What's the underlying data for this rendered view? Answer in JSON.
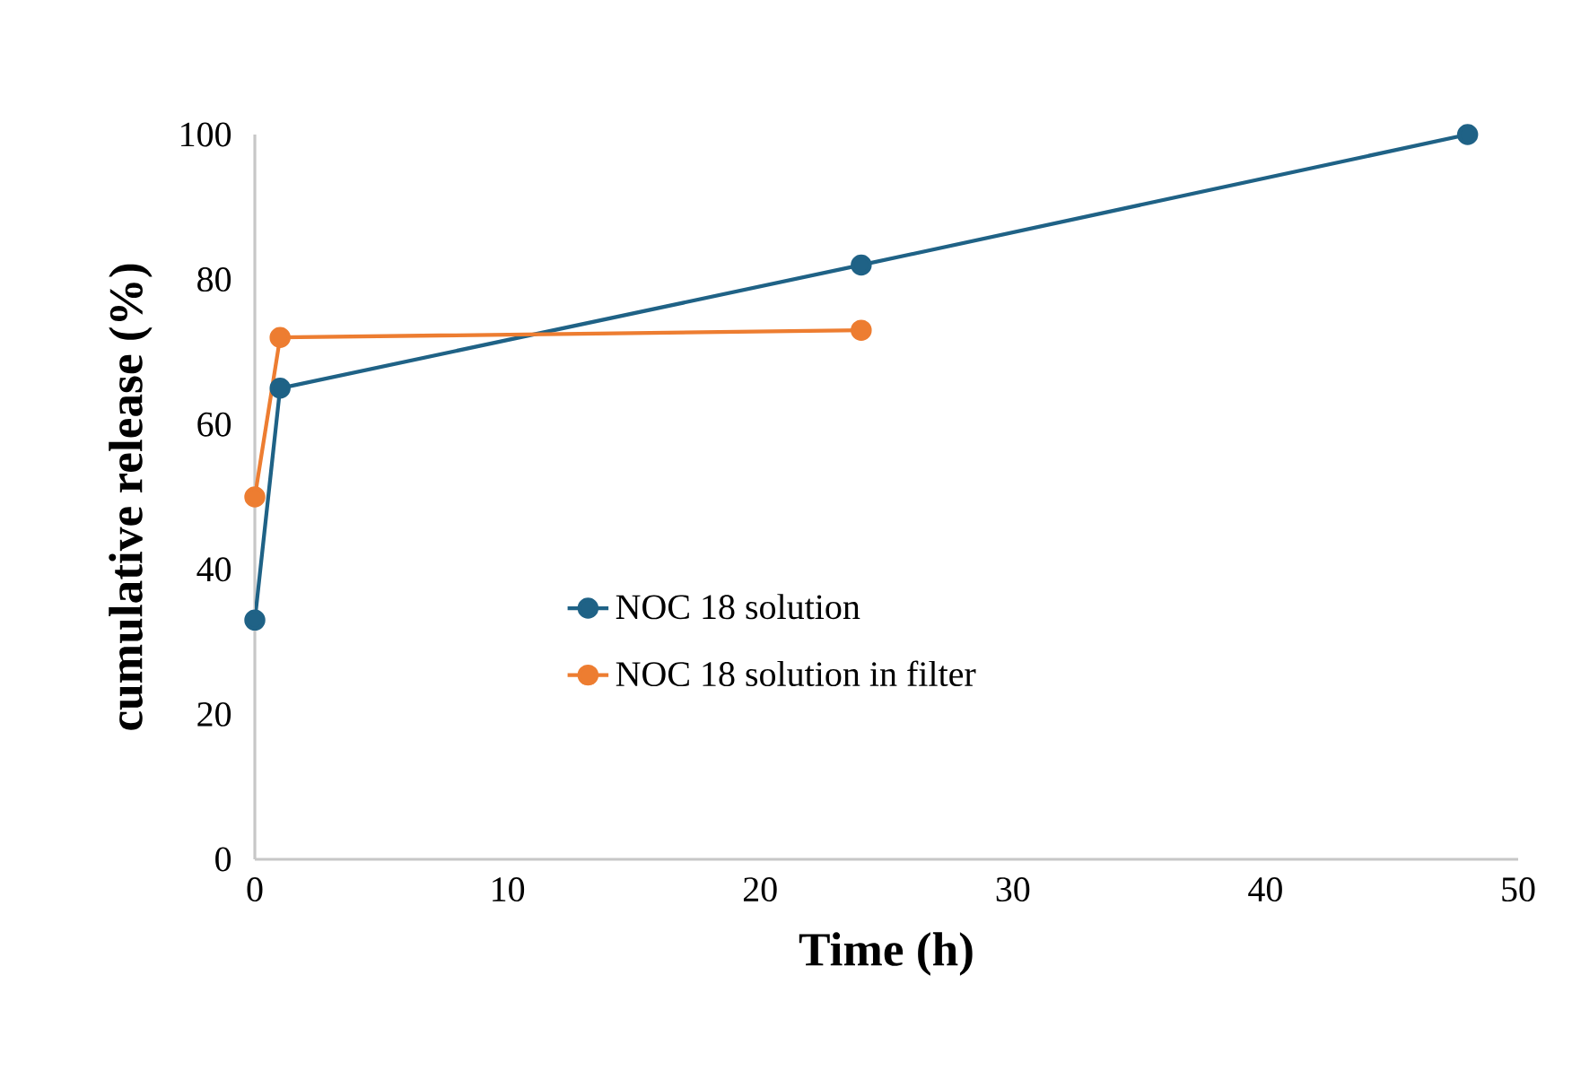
{
  "chart_data": {
    "type": "line",
    "xlabel": "Time (h)",
    "ylabel": "cumulative  release (%)",
    "xlim": [
      0,
      50
    ],
    "xticks": [
      0,
      10,
      20,
      30,
      40,
      50
    ],
    "ylim": [
      0,
      100
    ],
    "yticks": [
      0,
      20,
      40,
      60,
      80,
      100
    ],
    "grid": false,
    "legend": "center",
    "marker": "circle",
    "line_style": "solid",
    "series": [
      {
        "name": "NOC 18 solution",
        "color": "#1f6286",
        "x": [
          0,
          1,
          24,
          48
        ],
        "values": [
          33,
          65,
          82,
          100
        ]
      },
      {
        "name": "NOC 18 solution in filter",
        "color": "#ed7d31",
        "x": [
          0,
          1,
          24
        ],
        "values": [
          50,
          72,
          73
        ]
      }
    ]
  }
}
